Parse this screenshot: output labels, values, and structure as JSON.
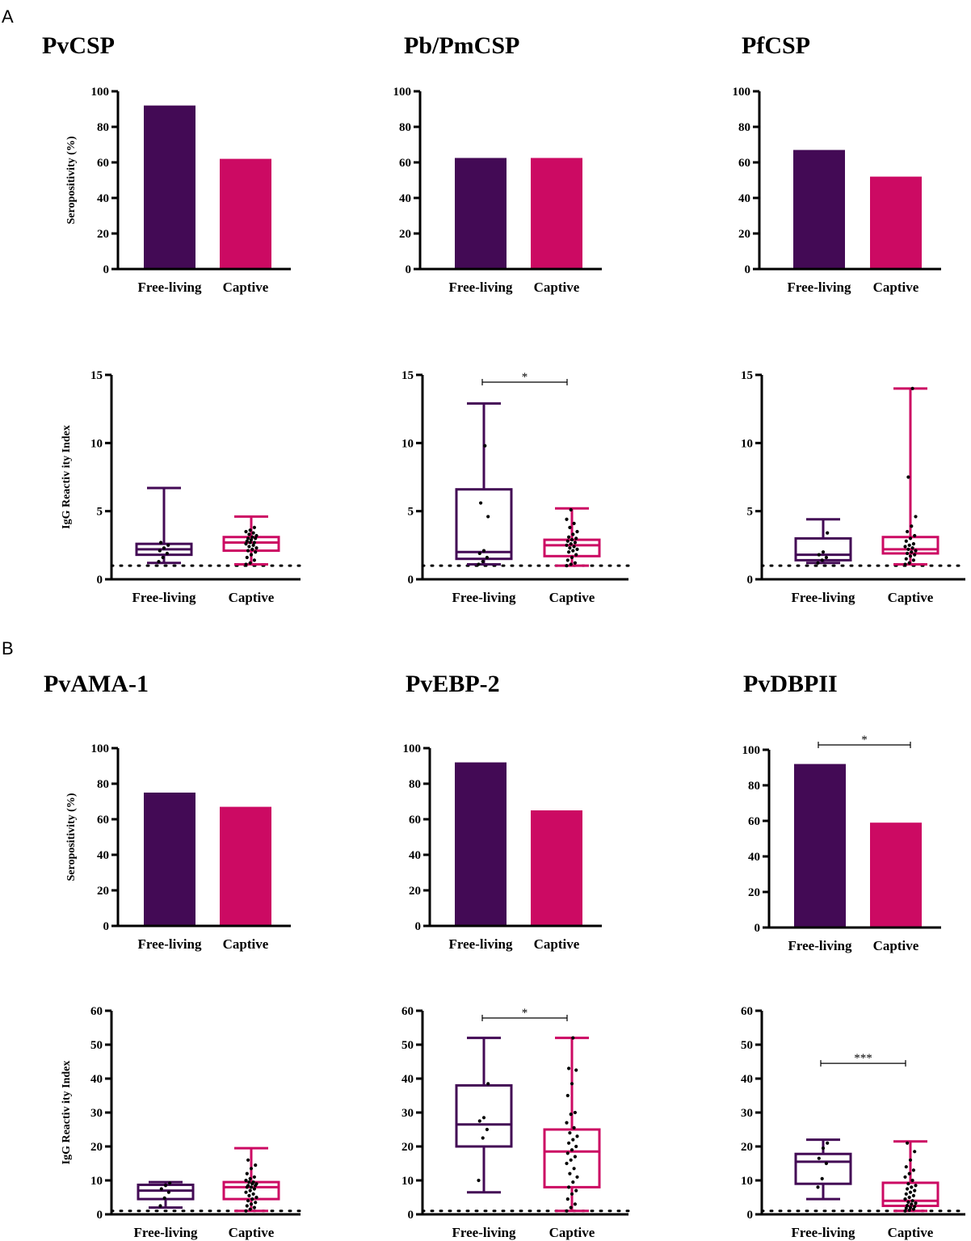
{
  "panels": [
    {
      "letter": "A"
    },
    {
      "letter": "B"
    }
  ],
  "colors": {
    "free_living": "#430a55",
    "captive": "#cc0a63",
    "axis": "#000000",
    "dot": "#000000"
  },
  "chart_data": [
    {
      "id": "pvcsp-bar",
      "type": "bar",
      "title": "PvCSP",
      "categories": [
        "Free-living",
        "Captive"
      ],
      "values": [
        92,
        62
      ],
      "ylabel": "Seropositivity (%)",
      "ylim": [
        0,
        100
      ],
      "yticks": [
        "0",
        "20",
        "40",
        "60",
        "80",
        "100"
      ],
      "significance": null
    },
    {
      "id": "pbpmcsp-bar",
      "type": "bar",
      "title": "Pb/PmCSP",
      "categories": [
        "Free-living",
        "Captive"
      ],
      "values": [
        62.5,
        62.5
      ],
      "ylabel": "",
      "ylim": [
        0,
        100
      ],
      "yticks": [
        "0",
        "20",
        "40",
        "60",
        "80",
        "100"
      ],
      "significance": null
    },
    {
      "id": "pfcsp-bar",
      "type": "bar",
      "title": "PfCSP",
      "categories": [
        "Free-living",
        "Captive"
      ],
      "values": [
        67,
        52
      ],
      "ylabel": "",
      "ylim": [
        0,
        100
      ],
      "yticks": [
        "0",
        "20",
        "40",
        "60",
        "80",
        "100"
      ],
      "significance": null
    },
    {
      "id": "pvcsp-box",
      "type": "box",
      "categories": [
        "Free-living",
        "Captive"
      ],
      "ylabel": "IgG Reactiv ity Index",
      "ylim": [
        0,
        15
      ],
      "yticks": [
        "0",
        "5",
        "10",
        "15"
      ],
      "cutoff": 1,
      "boxes": [
        {
          "min": 1.2,
          "q1": 1.8,
          "median": 2.2,
          "q3": 2.6,
          "max": 6.7,
          "points": [
            1.3,
            1.6,
            1.9,
            2.1,
            2.3,
            2.5,
            2.7
          ]
        },
        {
          "min": 1.1,
          "q1": 2.1,
          "median": 2.7,
          "q3": 3.1,
          "max": 4.6,
          "points": [
            1.1,
            1.2,
            1.4,
            1.6,
            1.8,
            2.0,
            2.1,
            2.2,
            2.3,
            2.4,
            2.5,
            2.6,
            2.7,
            2.7,
            2.8,
            2.9,
            3.0,
            3.0,
            3.1,
            3.2,
            3.3,
            3.4,
            3.5,
            3.6,
            3.8
          ]
        }
      ],
      "significance": null
    },
    {
      "id": "pbpmcsp-box",
      "type": "box",
      "categories": [
        "Free-living",
        "Captive"
      ],
      "ylabel": "",
      "ylim": [
        0,
        15
      ],
      "yticks": [
        "0",
        "5",
        "10",
        "15"
      ],
      "cutoff": 1,
      "boxes": [
        {
          "min": 1.1,
          "q1": 1.5,
          "median": 2.0,
          "q3": 6.6,
          "max": 12.9,
          "points": [
            1.1,
            1.3,
            1.6,
            1.9,
            2.1,
            4.6,
            5.6,
            9.8
          ]
        },
        {
          "min": 1.0,
          "q1": 1.7,
          "median": 2.5,
          "q3": 2.9,
          "max": 5.2,
          "points": [
            1.0,
            1.1,
            1.2,
            1.4,
            1.6,
            1.8,
            2.0,
            2.1,
            2.2,
            2.3,
            2.4,
            2.5,
            2.6,
            2.7,
            2.8,
            2.9,
            3.0,
            3.1,
            3.3,
            3.5,
            3.8,
            4.1,
            4.4,
            5.1
          ]
        }
      ],
      "significance": "*"
    },
    {
      "id": "pfcsp-box",
      "type": "box",
      "categories": [
        "Free-living",
        "Captive"
      ],
      "ylabel": "",
      "ylim": [
        0,
        15
      ],
      "yticks": [
        "0",
        "5",
        "10",
        "15"
      ],
      "cutoff": 1,
      "boxes": [
        {
          "min": 1.2,
          "q1": 1.4,
          "median": 1.8,
          "q3": 3.0,
          "max": 4.4,
          "points": [
            1.2,
            1.4,
            1.6,
            1.8,
            2.0,
            3.4
          ]
        },
        {
          "min": 1.1,
          "q1": 1.9,
          "median": 2.2,
          "q3": 3.1,
          "max": 14.0,
          "points": [
            1.1,
            1.2,
            1.4,
            1.5,
            1.7,
            1.8,
            1.9,
            2.0,
            2.1,
            2.2,
            2.3,
            2.4,
            2.5,
            2.6,
            2.8,
            3.0,
            3.2,
            3.5,
            3.9,
            4.6,
            7.5,
            14.0
          ]
        }
      ],
      "significance": null
    },
    {
      "id": "pvama1-bar",
      "type": "bar",
      "title": "PvAMA-1",
      "categories": [
        "Free-living",
        "Captive"
      ],
      "values": [
        75,
        67
      ],
      "ylabel": "Seropositivity (%)",
      "ylim": [
        0,
        100
      ],
      "yticks": [
        "0",
        "20",
        "40",
        "60",
        "80",
        "100"
      ],
      "significance": null
    },
    {
      "id": "pvebp2-bar",
      "type": "bar",
      "title": "PvEBP-2",
      "categories": [
        "Free-living",
        "Captive"
      ],
      "values": [
        92,
        65
      ],
      "ylabel": "",
      "ylim": [
        0,
        100
      ],
      "yticks": [
        "0",
        "20",
        "40",
        "60",
        "80",
        "100"
      ],
      "significance": null
    },
    {
      "id": "pvdbpii-bar",
      "type": "bar",
      "title": "PvDBPII",
      "categories": [
        "Free-living",
        "Captive"
      ],
      "values": [
        92,
        59
      ],
      "ylabel": "",
      "ylim": [
        0,
        100
      ],
      "yticks": [
        "0",
        "20",
        "40",
        "60",
        "80",
        "100"
      ],
      "significance": "*"
    },
    {
      "id": "pvama1-box",
      "type": "box",
      "categories": [
        "Free-living",
        "Captive"
      ],
      "ylabel": "IgG Reactiv ity Index",
      "ylim": [
        0,
        60
      ],
      "yticks": [
        "0",
        "10",
        "20",
        "30",
        "40",
        "50",
        "60"
      ],
      "cutoff": 1,
      "boxes": [
        {
          "min": 2.0,
          "q1": 4.5,
          "median": 7.0,
          "q3": 8.7,
          "max": 9.5,
          "points": [
            2.5,
            4.8,
            6.5,
            7.5,
            8.5,
            9.2
          ]
        },
        {
          "min": 1.0,
          "q1": 4.5,
          "median": 8.0,
          "q3": 9.5,
          "max": 19.5,
          "points": [
            1.0,
            1.5,
            2.0,
            2.5,
            3.0,
            3.5,
            4.0,
            4.5,
            5.0,
            5.5,
            6.0,
            6.5,
            7.0,
            7.5,
            8.0,
            8.0,
            8.5,
            8.5,
            9.0,
            9.0,
            9.5,
            9.5,
            10.0,
            10.5,
            11.0,
            12.0,
            13.5,
            14.5,
            16.0
          ]
        }
      ],
      "significance": null
    },
    {
      "id": "pvebp2-box",
      "type": "box",
      "categories": [
        "Free-living",
        "Captive"
      ],
      "ylabel": "",
      "ylim": [
        0,
        60
      ],
      "yticks": [
        "0",
        "10",
        "20",
        "30",
        "40",
        "50",
        "60"
      ],
      "cutoff": 1,
      "boxes": [
        {
          "min": 6.5,
          "q1": 20.0,
          "median": 26.5,
          "q3": 38.0,
          "max": 52.0,
          "points": [
            10.0,
            22.5,
            25.0,
            27.5,
            28.5,
            38.5
          ]
        },
        {
          "min": 1.0,
          "q1": 8.0,
          "median": 18.5,
          "q3": 25.0,
          "max": 52.0,
          "points": [
            1.0,
            2.0,
            3.0,
            4.5,
            6.0,
            7.0,
            8.0,
            9.5,
            11.0,
            12.0,
            13.5,
            15.0,
            16.0,
            17.0,
            18.0,
            19.0,
            20.0,
            21.0,
            22.0,
            23.0,
            24.0,
            25.5,
            27.0,
            29.5,
            30.0,
            35.0,
            38.5,
            42.5,
            43.0,
            52.0
          ]
        }
      ],
      "significance": "*"
    },
    {
      "id": "pvdbpii-box",
      "type": "box",
      "categories": [
        "Free-living",
        "Captive"
      ],
      "ylabel": "",
      "ylim": [
        0,
        60
      ],
      "yticks": [
        "0",
        "10",
        "20",
        "30",
        "40",
        "50",
        "60"
      ],
      "cutoff": 1,
      "boxes": [
        {
          "min": 4.5,
          "q1": 9.0,
          "median": 15.5,
          "q3": 17.8,
          "max": 22.0,
          "points": [
            8.0,
            10.5,
            15.0,
            16.5,
            19.5,
            21.0
          ]
        },
        {
          "min": 1.0,
          "q1": 2.5,
          "median": 4.0,
          "q3": 9.3,
          "max": 21.5,
          "points": [
            1.0,
            1.2,
            1.5,
            1.8,
            2.0,
            2.3,
            2.6,
            3.0,
            3.3,
            3.6,
            4.0,
            4.5,
            5.0,
            5.5,
            6.0,
            6.5,
            7.0,
            7.5,
            8.0,
            8.5,
            9.0,
            10.0,
            11.0,
            12.0,
            13.0,
            14.0,
            16.0,
            18.5,
            21.0
          ]
        }
      ],
      "significance": "***"
    }
  ]
}
